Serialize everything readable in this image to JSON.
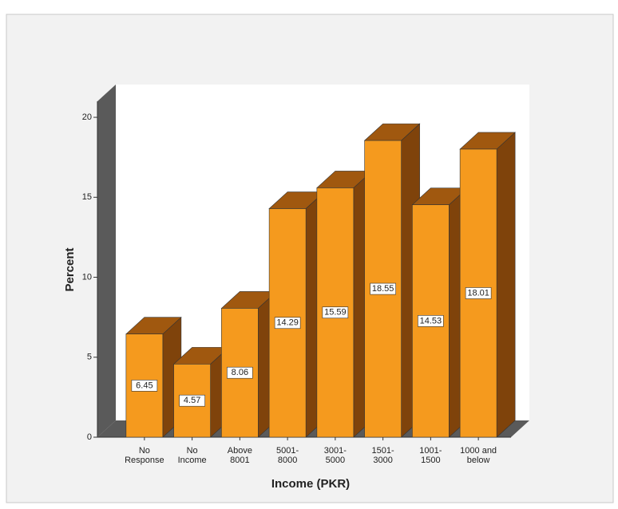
{
  "chart_data": {
    "type": "bar3d",
    "x_label": "Income (PKR)",
    "y_label": "Percent",
    "categories": [
      "No\nResponse",
      "No\nIncome",
      "Above\n8001",
      "5001-\n8000",
      "3001-\n5000",
      "1501-\n3000",
      "1001-\n1500",
      "1000 and\nbelow"
    ],
    "values": [
      6.45,
      4.57,
      8.06,
      14.29,
      15.59,
      18.55,
      14.53,
      18.01
    ],
    "color": "#f59a1e",
    "top_color": "#a0580f",
    "side_color": "#7f430b",
    "ylim": [
      0,
      21
    ],
    "yticks": [
      0,
      5,
      10,
      15,
      20
    ]
  }
}
